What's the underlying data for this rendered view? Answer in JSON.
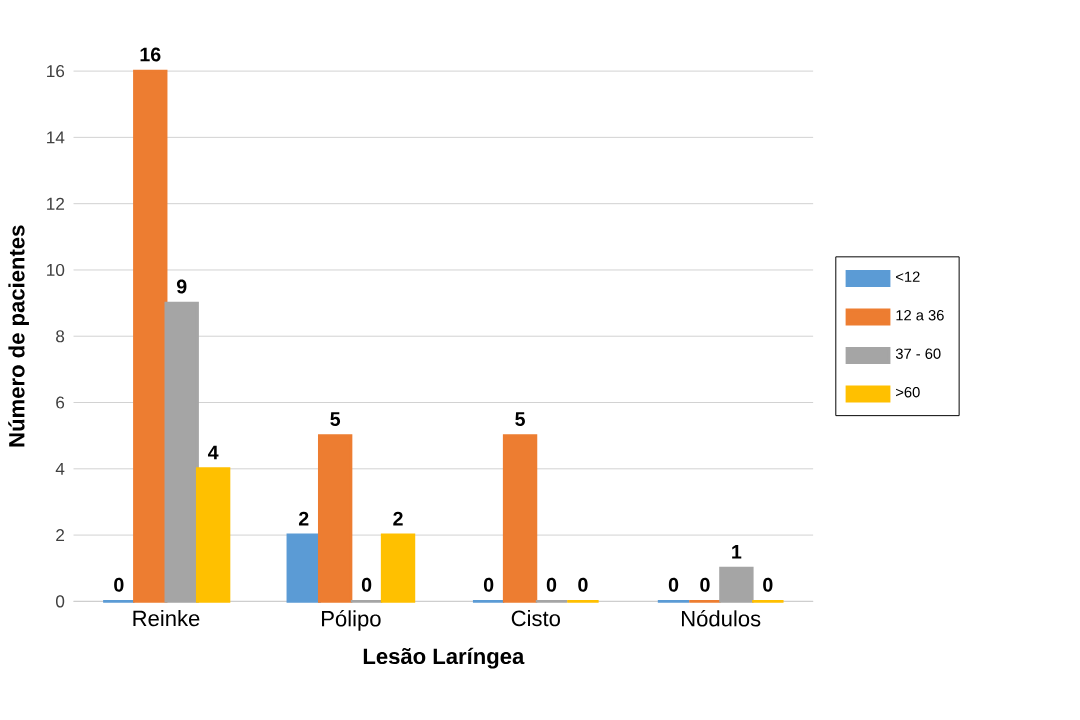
{
  "chart_data": {
    "type": "bar",
    "xlabel": "Lesão Laríngea",
    "ylabel": "Número de pacientes",
    "categories": [
      "Reinke",
      "Pólipo",
      "Cisto",
      "Nódulos"
    ],
    "series": [
      {
        "name": "<12",
        "color": "#5b9bd5",
        "values": [
          0,
          2,
          0,
          0
        ]
      },
      {
        "name": "12 a 36",
        "color": "#ed7d31",
        "values": [
          16,
          5,
          5,
          0
        ]
      },
      {
        "name": "37 - 60",
        "color": "#a5a5a5",
        "values": [
          9,
          0,
          0,
          1
        ]
      },
      {
        "name": ">60",
        "color": "#ffc000",
        "values": [
          4,
          2,
          0,
          0
        ]
      }
    ],
    "ylim": [
      0,
      16
    ],
    "yticks": [
      0,
      2,
      4,
      6,
      8,
      10,
      12,
      14,
      16
    ],
    "grid": "y",
    "legend": "right",
    "data_labels": true
  }
}
